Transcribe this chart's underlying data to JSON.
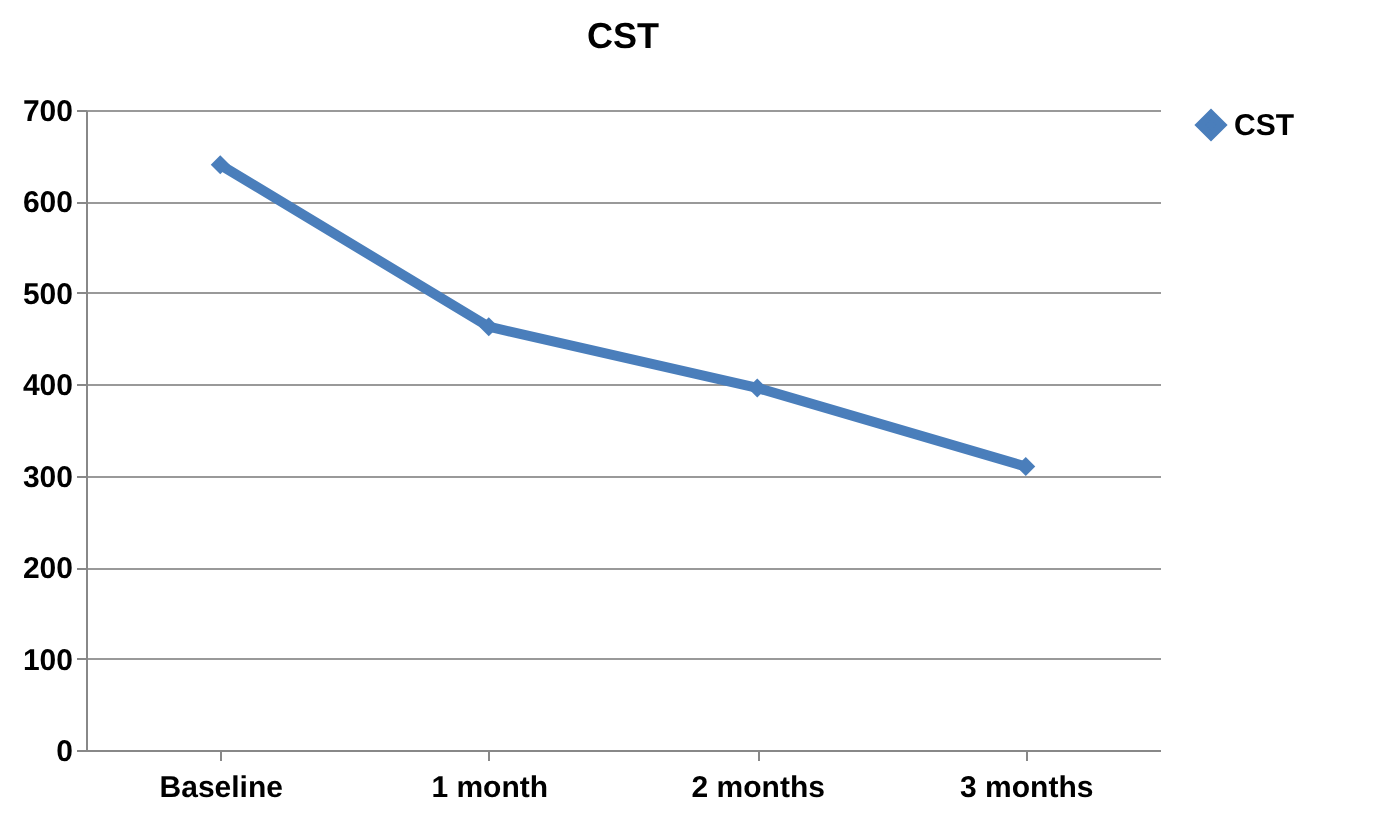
{
  "chart_data": {
    "type": "line",
    "title": "CST",
    "categories": [
      "Baseline",
      "1 month",
      "2 months",
      "3 months"
    ],
    "series": [
      {
        "name": "CST",
        "color": "#4a7ebb",
        "values": [
          640,
          463,
          396,
          310
        ]
      }
    ],
    "ylim": [
      0,
      700
    ],
    "yticks": [
      0,
      100,
      200,
      300,
      400,
      500,
      600,
      700
    ],
    "grid": "y",
    "legend": "right",
    "marker": "diamond",
    "line_style": "solid"
  }
}
